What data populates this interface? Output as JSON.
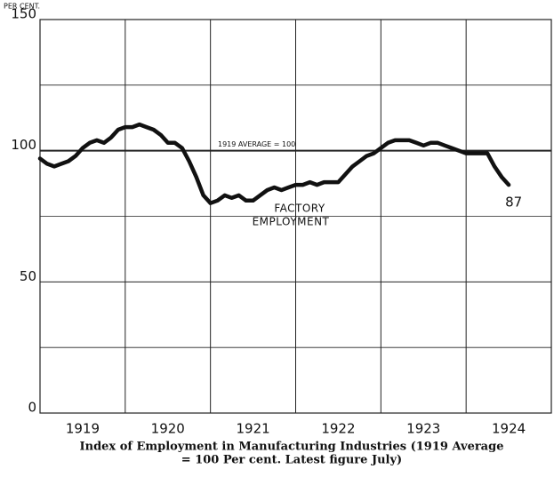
{
  "chart_data": {
    "type": "line",
    "y_label": "PER CENT.",
    "caption": [
      "Index of Employment in Manufacturing Industries (1919 Average",
      "= 100 Per cent.  Latest figure July)"
    ],
    "reference": {
      "value": 100,
      "label": "1919 AVERAGE = 100"
    },
    "series_label": [
      "FACTORY",
      "EMPLOYMENT"
    ],
    "color": "#111111",
    "grid": true,
    "xlim": [
      1919,
      1925
    ],
    "ylim": [
      0,
      150
    ],
    "yticks": [
      0,
      50,
      100,
      150
    ],
    "xticks": [
      {
        "value": 1919.5,
        "label": "1919"
      },
      {
        "value": 1920.5,
        "label": "1920"
      },
      {
        "value": 1921.5,
        "label": "1921"
      },
      {
        "value": 1922.5,
        "label": "1922"
      },
      {
        "value": 1923.5,
        "label": "1923"
      },
      {
        "value": 1924.5,
        "label": "1924"
      }
    ],
    "x": [
      1919,
      1919.083,
      1919.167,
      1919.25,
      1919.333,
      1919.417,
      1919.5,
      1919.583,
      1919.667,
      1919.75,
      1919.833,
      1919.917,
      1920,
      1920.083,
      1920.167,
      1920.25,
      1920.333,
      1920.417,
      1920.5,
      1920.583,
      1920.667,
      1920.75,
      1920.833,
      1920.917,
      1921,
      1921.083,
      1921.167,
      1921.25,
      1921.333,
      1921.417,
      1921.5,
      1921.583,
      1921.667,
      1921.75,
      1921.833,
      1921.917,
      1922,
      1922.083,
      1922.167,
      1922.25,
      1922.333,
      1922.417,
      1922.5,
      1922.583,
      1922.667,
      1922.75,
      1922.833,
      1922.917,
      1923,
      1923.083,
      1923.167,
      1923.25,
      1923.333,
      1923.417,
      1923.5,
      1923.583,
      1923.667,
      1923.75,
      1923.833,
      1923.917,
      1924,
      1924.083,
      1924.167,
      1924.25,
      1924.333,
      1924.417,
      1924.5
    ],
    "values": [
      97,
      95,
      94,
      95,
      96,
      98,
      101,
      103,
      104,
      103,
      105,
      108,
      109,
      109,
      110,
      109,
      108,
      106,
      103,
      103,
      101,
      96,
      90,
      83,
      80,
      81,
      83,
      82,
      83,
      81,
      81,
      83,
      85,
      86,
      85,
      86,
      87,
      87,
      88,
      87,
      88,
      88,
      88,
      91,
      94,
      96,
      98,
      99,
      101,
      103,
      104,
      104,
      104,
      103,
      102,
      103,
      103,
      102,
      101,
      100,
      99,
      99,
      99,
      99,
      94,
      90,
      87
    ]
  }
}
